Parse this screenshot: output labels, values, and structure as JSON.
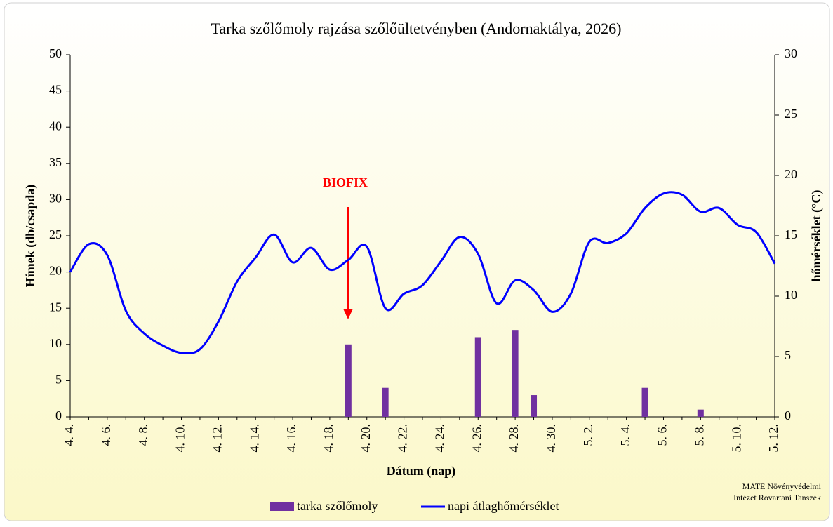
{
  "chart_data": {
    "type": "bar-line",
    "title": "Tarka szőlőmoly rajzása szőlőültetvényben (Andornaktálya, 2026)",
    "x_label": "Dátum (nap)",
    "y_label": "Hímek (db/csapda)",
    "y2_label": "hőmérséklet (°C)",
    "annotations": [
      "BIOFIX"
    ],
    "credit": [
      "MATE Növényvédelmi",
      "Intézet Rovartani Tanszék"
    ],
    "categories": [
      "4. 4.",
      null,
      "4. 6.",
      null,
      "4. 8.",
      null,
      "4. 10.",
      null,
      "4. 12.",
      null,
      "4. 14.",
      null,
      "4. 16.",
      null,
      "4. 18.",
      null,
      "4. 20.",
      null,
      "4. 22.",
      null,
      "4. 24.",
      null,
      "4. 26.",
      null,
      "4. 28.",
      null,
      "4. 30.",
      null,
      "5. 2.",
      null,
      "5. 4.",
      null,
      "5. 6.",
      null,
      "5. 8.",
      null,
      "5. 10.",
      null,
      "5. 12."
    ],
    "series": [
      {
        "name": "tarka szőlőmoly",
        "type": "bar",
        "color": "#7030a0",
        "values": [
          0,
          0,
          0,
          0,
          0,
          0,
          0,
          0,
          0,
          0,
          0,
          0,
          0,
          0,
          0,
          10,
          0,
          4,
          0,
          0,
          0,
          0,
          11,
          0,
          12,
          3,
          0,
          0,
          0,
          0,
          0,
          4,
          0,
          0,
          1,
          0,
          0,
          0,
          0
        ]
      },
      {
        "name": "napi átlaghőmérséklet",
        "type": "line",
        "axis": "y2",
        "color": "#0000ff",
        "values": [
          12.0,
          14.3,
          13.4,
          8.8,
          6.9,
          5.9,
          5.3,
          5.6,
          7.9,
          11.2,
          13.2,
          15.1,
          12.8,
          14.0,
          12.2,
          13.0,
          14.1,
          9.0,
          10.2,
          10.9,
          12.9,
          14.9,
          13.5,
          9.4,
          11.3,
          10.5,
          8.7,
          10.2,
          14.5,
          14.4,
          15.2,
          17.3,
          18.5,
          18.4,
          17.0,
          17.3,
          15.9,
          15.3,
          12.7
        ]
      }
    ],
    "ylim": [
      0,
      50
    ],
    "yticks": [
      0,
      5,
      10,
      15,
      20,
      25,
      30,
      35,
      40,
      45,
      50
    ],
    "y2lim": [
      0,
      30
    ],
    "y2ticks": [
      0,
      5,
      10,
      15,
      20,
      25,
      30
    ],
    "grid": false
  }
}
